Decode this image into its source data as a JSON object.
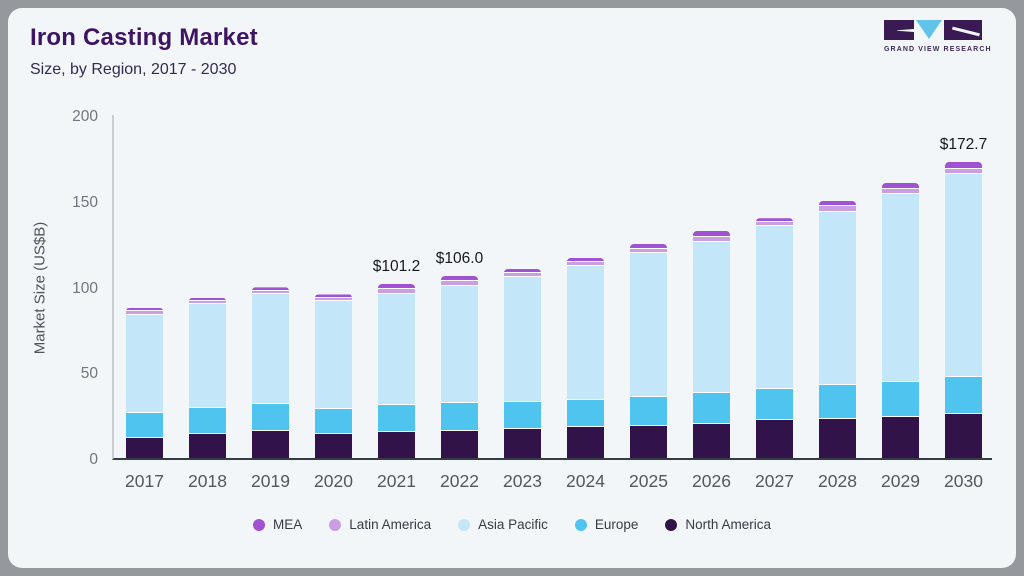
{
  "header": {
    "title": "Iron Casting Market",
    "subtitle": "Size, by Region, 2017 - 2030",
    "logo_text": "GRAND VIEW RESEARCH"
  },
  "chart_data": {
    "type": "bar",
    "stacked": true,
    "title": "Iron Casting Market Size, by Region, 2017 - 2030",
    "xlabel": "",
    "ylabel": "Market Size (US$B)",
    "ylim": [
      0,
      200
    ],
    "yticks": [
      0,
      50,
      100,
      150,
      200
    ],
    "grid": false,
    "legend_position": "bottom",
    "categories": [
      "2017",
      "2018",
      "2019",
      "2020",
      "2021",
      "2022",
      "2023",
      "2024",
      "2025",
      "2026",
      "2027",
      "2028",
      "2029",
      "2030"
    ],
    "series": [
      {
        "name": "North America",
        "color": "#321349",
        "values": [
          11.6,
          14.0,
          15.9,
          14.0,
          15.3,
          15.9,
          16.9,
          17.9,
          18.4,
          19.8,
          21.9,
          22.9,
          23.8,
          25.6
        ]
      },
      {
        "name": "Europe",
        "color": "#4fc4ee",
        "values": [
          14.4,
          15.1,
          15.5,
          14.5,
          15.5,
          15.9,
          15.7,
          16.1,
          17.4,
          18.0,
          18.4,
          19.4,
          20.3,
          21.9
        ]
      },
      {
        "name": "Asia Pacific",
        "color": "#c3e6f8",
        "values": [
          57.5,
          60.5,
          64.0,
          63.0,
          64.9,
          68.6,
          73.1,
          78.1,
          83.7,
          88.2,
          94.8,
          101.2,
          109.9,
          118.2
        ]
      },
      {
        "name": "Latin America",
        "color": "#cb9ee4",
        "values": [
          2.0,
          1.9,
          1.8,
          1.9,
          2.6,
          2.6,
          2.3,
          2.4,
          2.5,
          2.9,
          2.4,
          3.2,
          3.1,
          2.9
        ]
      },
      {
        "name": "MEA",
        "color": "#a152d3",
        "values": [
          2.0,
          2.0,
          2.4,
          2.0,
          2.9,
          3.0,
          2.5,
          2.4,
          2.6,
          3.3,
          2.4,
          3.4,
          3.3,
          4.1
        ]
      }
    ],
    "totals": [
      87.5,
      93.5,
      99.6,
      95.4,
      101.2,
      106.0,
      110.5,
      116.9,
      124.6,
      132.2,
      139.9,
      150.1,
      160.4,
      172.7
    ],
    "bar_value_labels": {
      "2021": "$101.2",
      "2022": "$106.0",
      "2030": "$172.7"
    },
    "legend": [
      {
        "label": "MEA",
        "color": "#a152d3"
      },
      {
        "label": "Latin America",
        "color": "#cb9ee4"
      },
      {
        "label": "Asia Pacific",
        "color": "#c3e6f8"
      },
      {
        "label": "Europe",
        "color": "#4fc4ee"
      },
      {
        "label": "North America",
        "color": "#321349"
      }
    ]
  },
  "colors": {
    "card_background": "#f2f6f9",
    "frame": "#95999e",
    "title": "#3d1562",
    "subtitle": "#332a52",
    "axis_line_x": "#363c44",
    "axis_line_y": "#c8cdd3",
    "tick_text": "#70767e",
    "value_label_text": "#17191c"
  }
}
